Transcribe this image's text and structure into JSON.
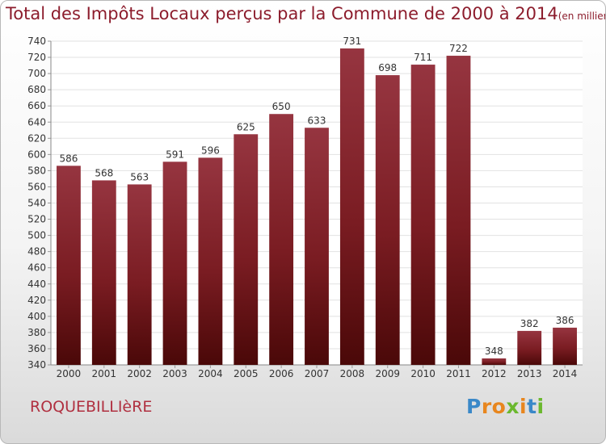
{
  "chart_data": {
    "type": "bar",
    "title": "Total des Impôts Locaux perçus par la Commune de 2000 à 2014",
    "subtitle": "(en milliers d'€)",
    "categories": [
      "2000",
      "2001",
      "2002",
      "2003",
      "2004",
      "2005",
      "2006",
      "2007",
      "2008",
      "2009",
      "2010",
      "2011",
      "2012",
      "2013",
      "2014"
    ],
    "values": [
      586,
      568,
      563,
      591,
      596,
      625,
      650,
      633,
      731,
      698,
      711,
      722,
      348,
      382,
      386
    ],
    "ylim": [
      340,
      740
    ],
    "ytick_step": 20,
    "grid": true,
    "legend": "none",
    "bar_color": "#7a1c22"
  },
  "footer": {
    "commune": "ROQUEBILLIèRE",
    "logo_text": "Proxiti"
  },
  "logo_colors": [
    "#3a88c8",
    "#e8861e",
    "#e8861e",
    "#6bb82e",
    "#e8861e",
    "#3a88c8",
    "#6bb82e"
  ]
}
